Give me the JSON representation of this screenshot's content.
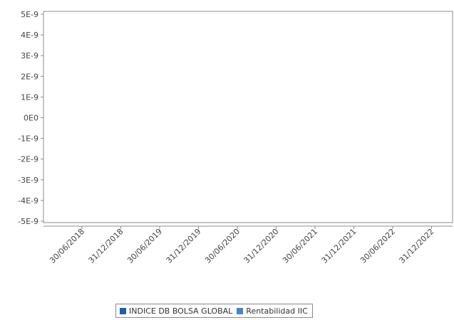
{
  "chart_data": {
    "type": "line",
    "title": "",
    "xlabel": "",
    "ylabel": "",
    "ylim": [
      -5e-09,
      5e-09
    ],
    "y_tick_labels": [
      "5E-9",
      "4E-9",
      "3E-9",
      "2E-9",
      "1E-9",
      "0E0",
      "-1E-9",
      "-2E-9",
      "-3E-9",
      "-4E-9",
      "-5E-9"
    ],
    "x_tick_labels": [
      "30/06/2018",
      "31/12/2018",
      "30/06/2019",
      "31/12/2019",
      "30/06/2020",
      "31/12/2020",
      "30/06/2021",
      "31/12/2021",
      "30/06/2022",
      "31/12/2022"
    ],
    "grid": false,
    "legend_position": "bottom",
    "series": [
      {
        "name": "INDICE DB BOLSA GLOBAL",
        "color": "#1f5fa8",
        "values": []
      },
      {
        "name": "Rentabilidad IIC",
        "color": "#4a86c5",
        "values": []
      }
    ]
  }
}
